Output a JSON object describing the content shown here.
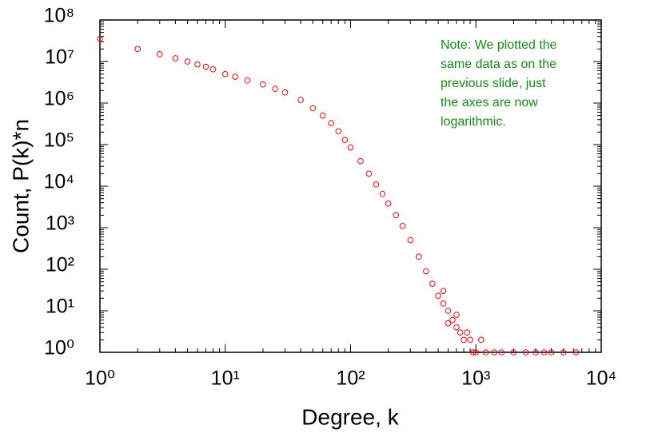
{
  "chart_data": {
    "type": "scatter",
    "xlabel": "Degree, k",
    "ylabel": "Count, P(k)*n",
    "annotation": [
      "Note: We plotted the",
      "same data as on the",
      "previous slide, just",
      "the axes are now",
      "logarithmic."
    ],
    "xscale": "log",
    "yscale": "log",
    "color": "#ff0000",
    "marker": "open-circle",
    "xlim": [
      1,
      10000
    ],
    "ylim": [
      1,
      100000000
    ],
    "xticks": [
      {
        "value": 1,
        "label": "10⁰"
      },
      {
        "value": 10,
        "label": "10¹"
      },
      {
        "value": 100,
        "label": "10²"
      },
      {
        "value": 1000,
        "label": "10³"
      },
      {
        "value": 10000,
        "label": "10⁴"
      }
    ],
    "yticks": [
      {
        "value": 1,
        "label": "10⁰"
      },
      {
        "value": 10,
        "label": "10¹"
      },
      {
        "value": 100,
        "label": "10²"
      },
      {
        "value": 1000,
        "label": "10³"
      },
      {
        "value": 10000,
        "label": "10⁴"
      },
      {
        "value": 100000,
        "label": "10⁵"
      },
      {
        "value": 1000000,
        "label": "10⁶"
      },
      {
        "value": 10000000,
        "label": "10⁷"
      },
      {
        "value": 100000000,
        "label": "10⁸"
      }
    ],
    "x": [
      1,
      2,
      3,
      4,
      5,
      6,
      7,
      8,
      10,
      12,
      15,
      20,
      25,
      30,
      40,
      50,
      60,
      70,
      80,
      90,
      100,
      120,
      140,
      160,
      180,
      200,
      230,
      260,
      300,
      350,
      400,
      450,
      500,
      550,
      550,
      600,
      600,
      650,
      700,
      700,
      750,
      800,
      850,
      900,
      950,
      1000,
      1100,
      1200,
      1400,
      1600,
      2000,
      2500,
      3000,
      3500,
      4000,
      5000,
      6300
    ],
    "values": [
      35000000,
      20000000,
      15000000,
      12000000,
      10000000,
      8500000,
      7500000,
      6500000,
      5000000,
      4300000,
      3500000,
      2800000,
      2200000,
      1800000,
      1200000,
      750000,
      500000,
      330000,
      210000,
      130000,
      85000,
      40000,
      20000,
      11000,
      6500,
      3800,
      2000,
      1100,
      500,
      200,
      90,
      45,
      23,
      15,
      30,
      10,
      5,
      6,
      4,
      8,
      3,
      2,
      3,
      2,
      1,
      1,
      2,
      1,
      1,
      1,
      1,
      1,
      1,
      1,
      1,
      1,
      1
    ]
  }
}
